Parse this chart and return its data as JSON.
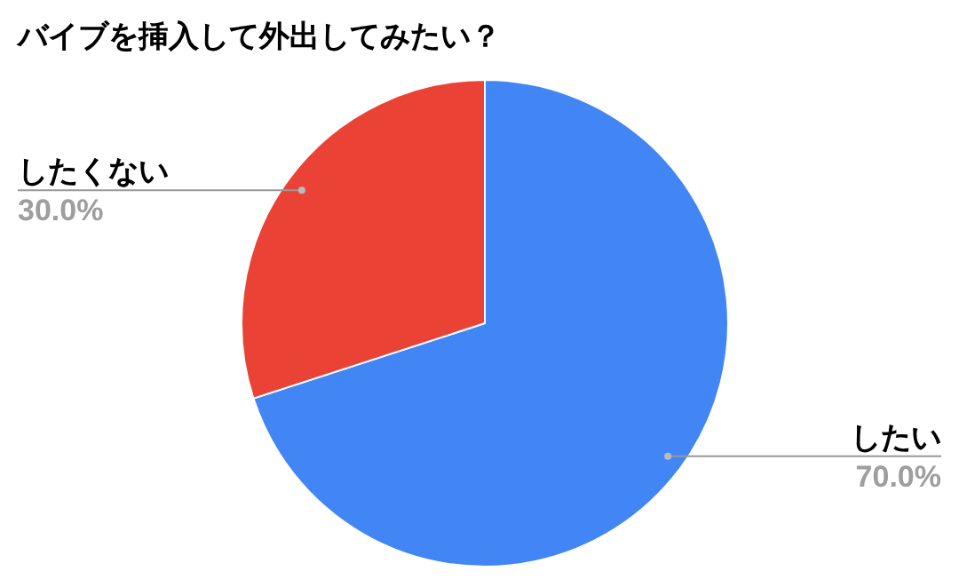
{
  "chart_data": {
    "type": "pie",
    "title": "バイブを挿入して外出してみたい？",
    "categories": [
      "したい",
      "したくない"
    ],
    "values": [
      70,
      30
    ],
    "colors": [
      "#4285f4",
      "#ea4335"
    ],
    "value_labels": [
      "70.0%",
      "30.0%"
    ]
  }
}
